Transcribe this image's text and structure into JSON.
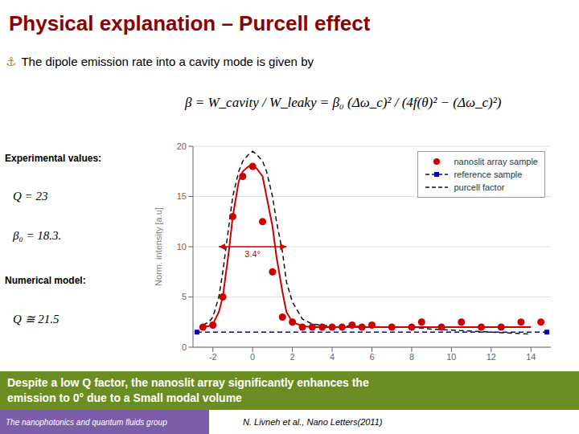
{
  "chart_data": {
    "type": "line",
    "title": {
      "text": "Physical explanation – Purcell effect",
      "color": "#8B0000"
    },
    "subtitle": [
      {
        "text": "⚓",
        "color": "#B8860B"
      },
      {
        "text": "The dipole emission rate into a cavity mode is given by",
        "color": "#000000"
      }
    ],
    "formula": "β = W_cavity / W_leaky = β₀ (Δω_c)² / (4f(θ)² − (Δω_c)²)",
    "notes": [
      {
        "heading": "Experimental values:",
        "lines": [
          "Q = 23",
          "β₀ = 18.3."
        ]
      },
      {
        "heading": "Numerical model:",
        "lines": [
          "Q ≅ 21.5"
        ]
      }
    ],
    "y_label": "Norm. intensity [a.u]",
    "xlim": [
      -3,
      15
    ],
    "ylim": [
      0,
      20
    ],
    "xticks": [
      -2,
      0,
      2,
      4,
      6,
      8,
      10,
      12,
      14
    ],
    "yticks": [
      0,
      5,
      10,
      15,
      20
    ],
    "grid": true,
    "legend": "upper right",
    "series": [
      {
        "name": "nanoslit array sample",
        "type": "scatter",
        "color": "#CC0000",
        "marker": "circle",
        "x": [
          -2.5,
          -2.0,
          -1.5,
          -1.0,
          -0.5,
          0.0,
          0.5,
          1.0,
          1.5,
          2.0,
          2.5,
          3.0,
          3.5,
          4.0,
          4.5,
          5.0,
          5.5,
          6.0,
          7.0,
          8.0,
          8.5,
          9.5,
          10.5,
          11.5,
          12.5,
          13.5,
          14.5
        ],
        "values": [
          2.0,
          2.2,
          5.0,
          13.0,
          17.0,
          18.0,
          12.5,
          7.5,
          3.0,
          2.5,
          2.0,
          2.0,
          2.0,
          2.0,
          2.0,
          2.2,
          2.0,
          2.2,
          2.0,
          2.0,
          2.5,
          2.0,
          2.5,
          2.0,
          2.0,
          2.5,
          2.5
        ]
      },
      {
        "name": "reference sample",
        "type": "line",
        "color": "#0000BB",
        "line_style": "dashed",
        "marker": "square",
        "x": [
          -2.8,
          14.8
        ],
        "values": [
          1.5,
          1.5
        ]
      },
      {
        "name": "purcell factor",
        "type": "line",
        "color": "#111111",
        "line_style": "dashed",
        "x": [
          -2.5,
          -2.2,
          -2.0,
          -1.7,
          -1.5,
          -1.2,
          -1.0,
          -0.7,
          -0.5,
          -0.2,
          0.0,
          0.2,
          0.5,
          0.7,
          1.0,
          1.2,
          1.5,
          1.7,
          2.0,
          2.5,
          3.0,
          3.5,
          4.0,
          5.0,
          6.0,
          7.0,
          8.0,
          9.0,
          10.0,
          11.0,
          12.0,
          13.0,
          14.0
        ],
        "values": [
          2.2,
          2.5,
          3.0,
          5.0,
          7.5,
          12.0,
          15.0,
          17.5,
          18.5,
          19.2,
          19.5,
          19.2,
          18.5,
          17.5,
          15.0,
          12.5,
          9.5,
          6.5,
          4.5,
          2.8,
          2.3,
          2.2,
          2.1,
          2.1,
          2.0,
          2.0,
          2.0,
          1.8,
          1.7,
          1.6,
          1.5,
          1.4,
          1.3
        ]
      },
      {
        "type": "line",
        "color": "#CC0000",
        "line_style": "solid",
        "x": [
          -2.5,
          -2.2,
          -2.0,
          -1.7,
          -1.5,
          -1.2,
          -1.0,
          -0.7,
          -0.5,
          -0.2,
          0.0,
          0.2,
          0.5,
          0.7,
          1.0,
          1.2,
          1.5,
          1.7,
          2.0,
          2.5,
          3.0,
          3.5,
          4.0,
          5.0,
          6.0,
          7.0,
          8.0,
          9.0,
          10.0,
          11.0,
          12.0,
          13.0,
          14.0
        ],
        "values": [
          2.05,
          2.1,
          2.3,
          3.5,
          5.0,
          9.5,
          13.0,
          16.5,
          17.5,
          18.0,
          18.0,
          17.8,
          17.0,
          15.0,
          12.0,
          9.0,
          5.5,
          3.5,
          2.5,
          2.1,
          2.0,
          2.0,
          2.0,
          2.0,
          2.0,
          2.0,
          2.0,
          2.0,
          2.0,
          2.0,
          2.0,
          2.0,
          2.0
        ]
      }
    ],
    "arrow": {
      "x": [
        -1.7,
        1.7
      ],
      "y": 10.0,
      "label": "3.4°",
      "color": "#CC0000"
    },
    "banner": {
      "lines": [
        "Despite a low Q factor, the nanoslit array significantly enhances the",
        "emission to 0° due to a Small modal volume"
      ],
      "color": "#FFFFFF",
      "background": "#6B8E23"
    },
    "footer": [
      {
        "text": "The nanophotonics and quantum fluids group",
        "color": "#FFFFFF",
        "background": "#7B5EA7"
      },
      {
        "text": "N. Livneh et al., Nano Letters(2011)",
        "color": "#000000"
      }
    ]
  }
}
